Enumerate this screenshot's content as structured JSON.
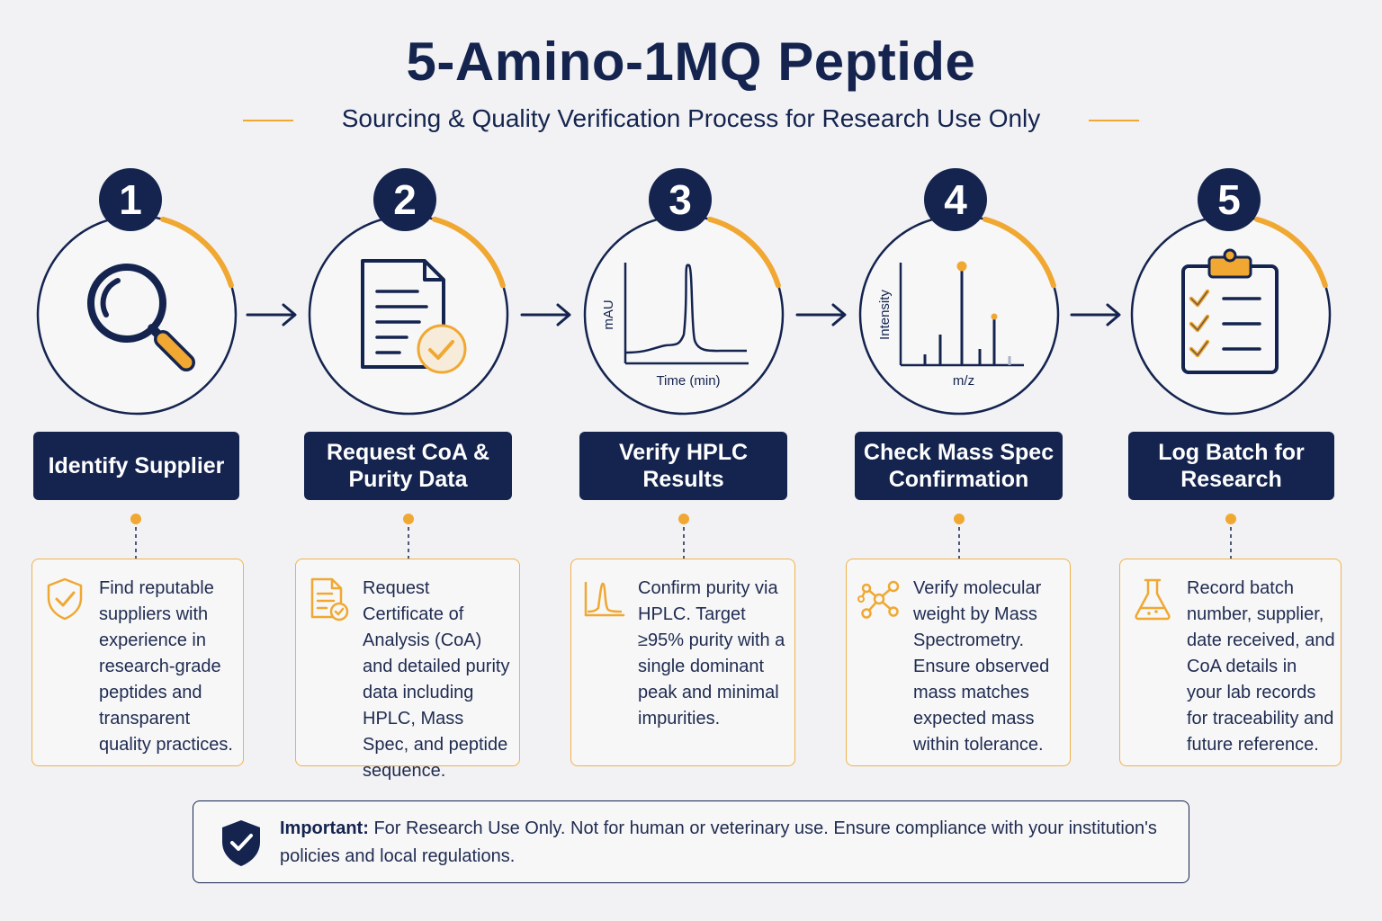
{
  "title": "5-Amino-1MQ Peptide",
  "subtitle": "Sourcing & Quality Verification Process for Research Use Only",
  "colors": {
    "navy": "#14244f",
    "accent": "#f0a832",
    "background": "#f2f2f4"
  },
  "steps": [
    {
      "number": "1",
      "icon": "magnifier-icon",
      "title": "Identify Supplier",
      "desc_icon": "shield-check-icon",
      "description": "Find reputable suppliers with experience in research-grade peptides and transparent quality practices."
    },
    {
      "number": "2",
      "icon": "document-check-icon",
      "title": "Request CoA & Purity Data",
      "desc_icon": "certificate-icon",
      "description": "Request Certificate of Analysis (CoA) and detailed purity data including HPLC, Mass Spec, and peptide sequence."
    },
    {
      "number": "3",
      "icon": "hplc-chromatogram-icon",
      "title": "Verify HPLC Results",
      "desc_icon": "peak-chart-icon",
      "description": "Confirm purity via HPLC. Target ≥95% purity with a single dominant peak and minimal impurities.",
      "chart": {
        "ylabel": "mAU",
        "xlabel": "Time (min)"
      }
    },
    {
      "number": "4",
      "icon": "mass-spectrum-icon",
      "title": "Check Mass Spec Confirmation",
      "desc_icon": "molecule-icon",
      "description": "Verify molecular weight by Mass Spectrometry. Ensure observed mass matches expected mass within tolerance.",
      "chart": {
        "ylabel": "Intensity",
        "xlabel": "m/z"
      }
    },
    {
      "number": "5",
      "icon": "clipboard-checklist-icon",
      "title": "Log Batch for Research",
      "desc_icon": "flask-icon",
      "description": "Record batch number, supplier, date received, and CoA details in your lab records for traceability and future reference."
    }
  ],
  "notice": {
    "icon": "shield-check-icon",
    "label": "Important:",
    "text": " For Research Use Only. Not for human or veterinary use. Ensure compliance with your institution's policies and local regulations."
  }
}
